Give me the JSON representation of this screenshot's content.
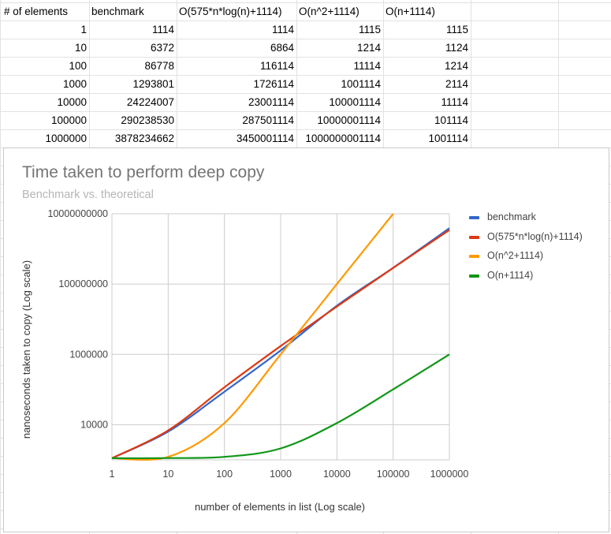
{
  "sheet": {
    "headers": [
      "# of elements",
      "benchmark",
      "O(575*n*log(n)+1114)",
      "O(n^2+1114)",
      "O(n+1114)"
    ],
    "rows": [
      [
        "1",
        "1114",
        "1114",
        "1115",
        "1115"
      ],
      [
        "10",
        "6372",
        "6864",
        "1214",
        "1124"
      ],
      [
        "100",
        "86778",
        "116114",
        "11114",
        "1214"
      ],
      [
        "1000",
        "1293801",
        "1726114",
        "1001114",
        "2114"
      ],
      [
        "10000",
        "24224007",
        "23001114",
        "100001114",
        "11114"
      ],
      [
        "100000",
        "290238530",
        "287501114",
        "10000001114",
        "101114"
      ],
      [
        "1000000",
        "3878234662",
        "3450001114",
        "1000000001114",
        "1001114"
      ]
    ]
  },
  "chart_data": {
    "type": "line",
    "title": "Time taken to perform deep copy",
    "subtitle": "Benchmark vs. theoretical",
    "xlabel": "number of elements in list (Log scale)",
    "ylabel": "nanoseconds taken to copy (Log scale)",
    "x_scale": "log",
    "y_scale": "log",
    "x": [
      1,
      10,
      100,
      1000,
      10000,
      100000,
      1000000
    ],
    "xlim": [
      1,
      1000000
    ],
    "ylim": [
      1000,
      10000000000
    ],
    "x_ticks": [
      "1",
      "10",
      "100",
      "1000",
      "10000",
      "100000",
      "1000000"
    ],
    "y_ticks": [
      {
        "value": 10000,
        "label": "10000"
      },
      {
        "value": 1000000,
        "label": "1000000"
      },
      {
        "value": 100000000,
        "label": "100000000"
      },
      {
        "value": 10000000000,
        "label": "10000000000"
      }
    ],
    "grid": true,
    "legend_position": "right",
    "series": [
      {
        "name": "benchmark",
        "color": "#3366cc",
        "values": [
          1114,
          6372,
          86778,
          1293801,
          24224007,
          290238530,
          3878234662
        ]
      },
      {
        "name": "O(575*n*log(n)+1114)",
        "color": "#dc3912",
        "values": [
          1114,
          6864,
          116114,
          1726114,
          23001114,
          287501114,
          3450001114
        ]
      },
      {
        "name": "O(n^2+1114)",
        "color": "#ff9900",
        "values": [
          1115,
          1214,
          11114,
          1001114,
          100001114,
          10000001114,
          1000000001114
        ]
      },
      {
        "name": "O(n+1114)",
        "color": "#109618",
        "values": [
          1115,
          1124,
          1214,
          2114,
          11114,
          101114,
          1001114
        ]
      }
    ]
  }
}
